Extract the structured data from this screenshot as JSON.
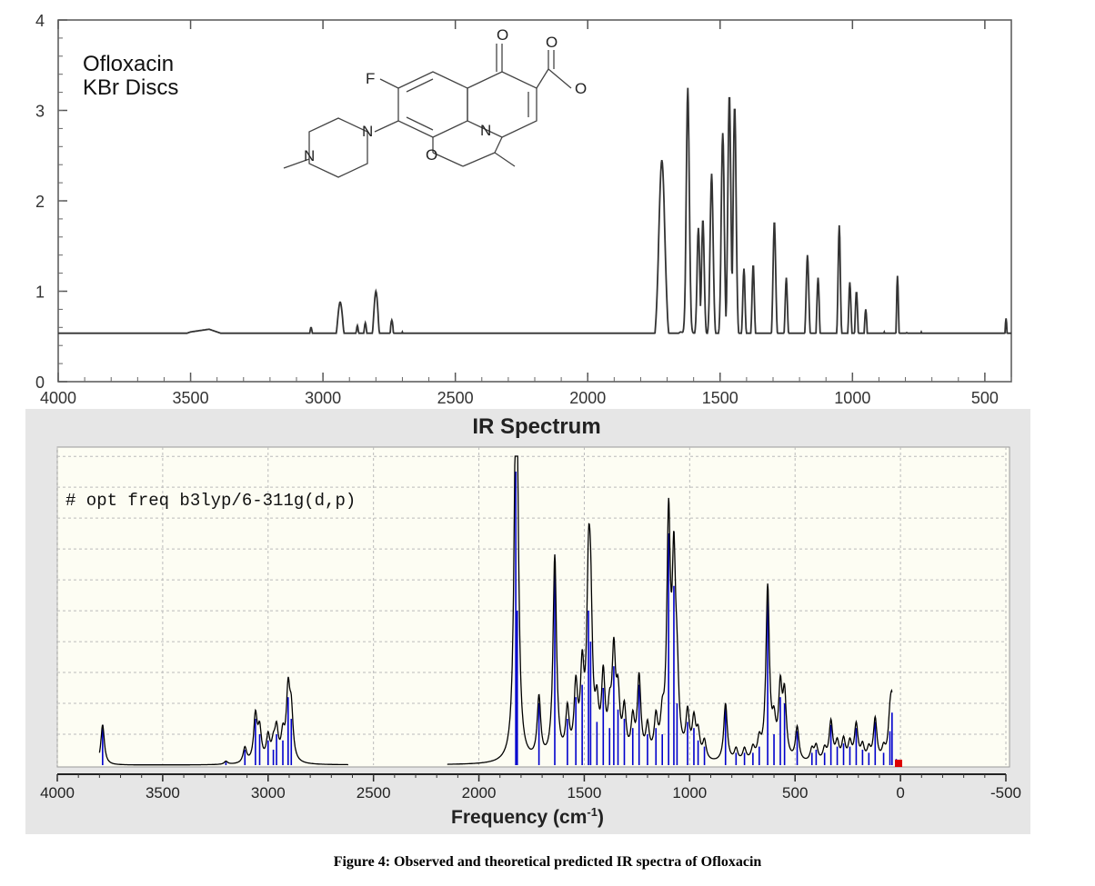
{
  "caption": "Figure 4: Observed and theoretical predicted IR spectra of Ofloxacin",
  "colors": {
    "top_line": "#333333",
    "calc_line": "#000000",
    "stick": "#0000cc",
    "marker": "#dd0000",
    "plot_bg": "#fdfdf3",
    "panel_bg": "#e6e6e6"
  },
  "chart_data": [
    {
      "type": "line",
      "legend": [
        "Ofloxacin",
        "KBr Discs"
      ],
      "xlabel": "",
      "ylabel": "",
      "xlim": [
        4000,
        400
      ],
      "ylim": [
        0,
        4
      ],
      "x_ticks": [
        "4000",
        "3500",
        "3000",
        "2500",
        "2000",
        "1500",
        "1000",
        "500"
      ],
      "y_ticks": [
        "0",
        "1",
        "2",
        "3",
        "4"
      ],
      "structure_labels": [
        "F",
        "O",
        "O",
        "O",
        "N",
        "N",
        "N",
        "O"
      ],
      "series": [
        {
          "baseline": [
            [
              4000,
              0.2
            ],
            [
              3800,
              0.2
            ],
            [
              3700,
              0.27
            ],
            [
              3600,
              0.45
            ],
            [
              3500,
              0.55
            ],
            [
              3430,
              0.58
            ],
            [
              3350,
              0.5
            ],
            [
              3250,
              0.4
            ],
            [
              3150,
              0.34
            ],
            [
              3080,
              0.38
            ],
            [
              2800,
              0.32
            ],
            [
              2600,
              0.28
            ],
            [
              2300,
              0.24
            ],
            [
              2000,
              0.23
            ],
            [
              1800,
              0.23
            ],
            [
              1760,
              0.3
            ],
            [
              1650,
              0.55
            ],
            [
              1550,
              0.5
            ],
            [
              1400,
              0.45
            ],
            [
              1200,
              0.42
            ],
            [
              1000,
              0.4
            ],
            [
              900,
              0.35
            ],
            [
              700,
              0.34
            ],
            [
              500,
              0.34
            ],
            [
              400,
              0.36
            ]
          ],
          "peaks": [
            {
              "x": 3045,
              "y": 0.6,
              "w": 8
            },
            {
              "x": 2935,
              "y": 0.88,
              "w": 14
            },
            {
              "x": 2870,
              "y": 0.62,
              "w": 8
            },
            {
              "x": 2840,
              "y": 0.65,
              "w": 8
            },
            {
              "x": 2800,
              "y": 1.0,
              "w": 12
            },
            {
              "x": 2740,
              "y": 0.68,
              "w": 9
            },
            {
              "x": 2700,
              "y": 0.55,
              "w": 8
            },
            {
              "x": 1720,
              "y": 2.45,
              "w": 16
            },
            {
              "x": 1622,
              "y": 3.25,
              "w": 8
            },
            {
              "x": 1582,
              "y": 1.7,
              "w": 7
            },
            {
              "x": 1565,
              "y": 1.8,
              "w": 7
            },
            {
              "x": 1532,
              "y": 2.3,
              "w": 8
            },
            {
              "x": 1490,
              "y": 2.75,
              "w": 8
            },
            {
              "x": 1465,
              "y": 3.18,
              "w": 8
            },
            {
              "x": 1445,
              "y": 3.05,
              "w": 8
            },
            {
              "x": 1410,
              "y": 1.25,
              "w": 6
            },
            {
              "x": 1375,
              "y": 1.3,
              "w": 6
            },
            {
              "x": 1295,
              "y": 1.78,
              "w": 7
            },
            {
              "x": 1250,
              "y": 1.15,
              "w": 6
            },
            {
              "x": 1170,
              "y": 1.4,
              "w": 7
            },
            {
              "x": 1130,
              "y": 1.15,
              "w": 6
            },
            {
              "x": 1050,
              "y": 1.73,
              "w": 6
            },
            {
              "x": 1010,
              "y": 1.1,
              "w": 6
            },
            {
              "x": 985,
              "y": 1.0,
              "w": 6
            },
            {
              "x": 950,
              "y": 0.8,
              "w": 6
            },
            {
              "x": 880,
              "y": 0.55,
              "w": 5
            },
            {
              "x": 830,
              "y": 1.17,
              "w": 5
            },
            {
              "x": 795,
              "y": 0.55,
              "w": 5
            },
            {
              "x": 740,
              "y": 0.55,
              "w": 5
            },
            {
              "x": 620,
              "y": 0.45,
              "w": 5
            },
            {
              "x": 570,
              "y": 0.5,
              "w": 5
            },
            {
              "x": 490,
              "y": 0.48,
              "w": 5
            },
            {
              "x": 420,
              "y": 0.7,
              "w": 5
            }
          ]
        }
      ]
    },
    {
      "type": "line",
      "title": "IR Spectrum",
      "annotation": "# opt freq b3lyp/6-311g(d,p)",
      "xlabel": "Frequency (cm",
      "xlabel_sup": "-1",
      "xlabel_end": ")",
      "ylabel": "",
      "xlim": [
        4000,
        -500
      ],
      "ylim": [
        0,
        1
      ],
      "x_ticks": [
        "4000",
        "3500",
        "3000",
        "2500",
        "2000",
        "1500",
        "1000",
        "500",
        "0",
        "-500"
      ],
      "grid": true,
      "sticks": [
        {
          "x": 3785,
          "y": 0.13
        },
        {
          "x": 3200,
          "y": 0.01
        },
        {
          "x": 3110,
          "y": 0.05
        },
        {
          "x": 3060,
          "y": 0.15
        },
        {
          "x": 3040,
          "y": 0.1
        },
        {
          "x": 3000,
          "y": 0.08
        },
        {
          "x": 2975,
          "y": 0.05
        },
        {
          "x": 2960,
          "y": 0.1
        },
        {
          "x": 2930,
          "y": 0.08
        },
        {
          "x": 2905,
          "y": 0.22
        },
        {
          "x": 2890,
          "y": 0.15
        },
        {
          "x": 1825,
          "y": 0.95
        },
        {
          "x": 1818,
          "y": 0.5
        },
        {
          "x": 1715,
          "y": 0.2
        },
        {
          "x": 1640,
          "y": 0.66
        },
        {
          "x": 1580,
          "y": 0.15
        },
        {
          "x": 1540,
          "y": 0.22
        },
        {
          "x": 1510,
          "y": 0.26
        },
        {
          "x": 1480,
          "y": 0.5
        },
        {
          "x": 1470,
          "y": 0.4
        },
        {
          "x": 1440,
          "y": 0.14
        },
        {
          "x": 1410,
          "y": 0.25
        },
        {
          "x": 1380,
          "y": 0.12
        },
        {
          "x": 1360,
          "y": 0.32
        },
        {
          "x": 1340,
          "y": 0.18
        },
        {
          "x": 1310,
          "y": 0.15
        },
        {
          "x": 1270,
          "y": 0.12
        },
        {
          "x": 1240,
          "y": 0.26
        },
        {
          "x": 1200,
          "y": 0.1
        },
        {
          "x": 1160,
          "y": 0.12
        },
        {
          "x": 1130,
          "y": 0.1
        },
        {
          "x": 1100,
          "y": 0.75
        },
        {
          "x": 1075,
          "y": 0.58
        },
        {
          "x": 1060,
          "y": 0.2
        },
        {
          "x": 1010,
          "y": 0.14
        },
        {
          "x": 980,
          "y": 0.12
        },
        {
          "x": 960,
          "y": 0.08
        },
        {
          "x": 930,
          "y": 0.06
        },
        {
          "x": 830,
          "y": 0.19
        },
        {
          "x": 780,
          "y": 0.04
        },
        {
          "x": 740,
          "y": 0.04
        },
        {
          "x": 700,
          "y": 0.04
        },
        {
          "x": 670,
          "y": 0.06
        },
        {
          "x": 630,
          "y": 0.56
        },
        {
          "x": 600,
          "y": 0.1
        },
        {
          "x": 570,
          "y": 0.22
        },
        {
          "x": 550,
          "y": 0.2
        },
        {
          "x": 490,
          "y": 0.11
        },
        {
          "x": 420,
          "y": 0.04
        },
        {
          "x": 400,
          "y": 0.05
        },
        {
          "x": 360,
          "y": 0.04
        },
        {
          "x": 330,
          "y": 0.13
        },
        {
          "x": 300,
          "y": 0.06
        },
        {
          "x": 270,
          "y": 0.07
        },
        {
          "x": 240,
          "y": 0.06
        },
        {
          "x": 210,
          "y": 0.12
        },
        {
          "x": 180,
          "y": 0.05
        },
        {
          "x": 150,
          "y": 0.04
        },
        {
          "x": 120,
          "y": 0.14
        },
        {
          "x": 80,
          "y": 0.04
        },
        {
          "x": 50,
          "y": 0.11
        },
        {
          "x": 40,
          "y": 0.17
        },
        {
          "x": 20,
          "y": 0.02
        }
      ],
      "broadening": 10
    }
  ]
}
